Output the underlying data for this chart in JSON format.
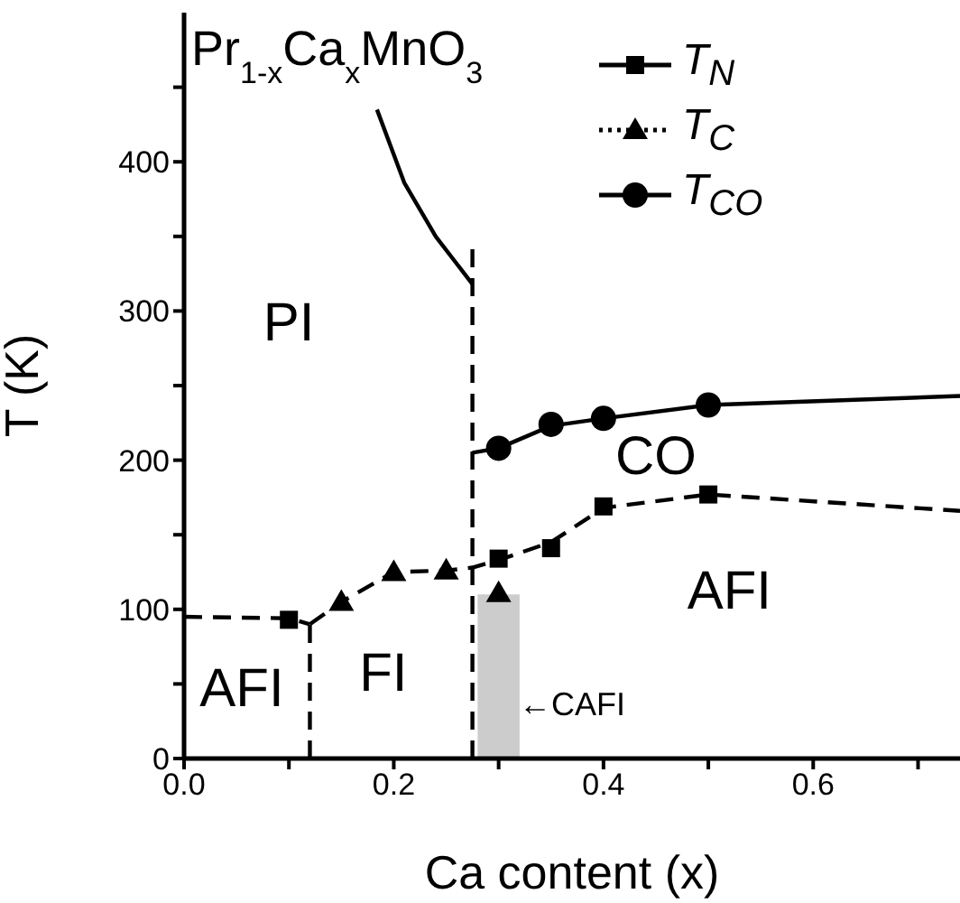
{
  "chart_data": {
    "type": "line",
    "title": "Pr$_{1-x}$Ca$_{x}$MnO$_{3}$",
    "xlabel": "Ca content (x)",
    "ylabel": "T (K)",
    "xlim": [
      0,
      0.74
    ],
    "xticks": [
      {
        "value": 0,
        "label": "0.0"
      },
      {
        "value": 0.1,
        "label": null
      },
      {
        "value": 0.2,
        "label": "0.2"
      },
      {
        "value": 0.3,
        "label": null
      },
      {
        "value": 0.4,
        "label": "0.4"
      },
      {
        "value": 0.5,
        "label": null
      },
      {
        "value": 0.6,
        "label": "0.6"
      },
      {
        "value": 0.7,
        "label": null
      }
    ],
    "ylim": [
      0,
      500
    ],
    "yticks": [
      0,
      {
        "value": 50,
        "label": null
      },
      100,
      {
        "value": 150,
        "label": null
      },
      200,
      {
        "value": 250,
        "label": null
      },
      300,
      {
        "value": 350,
        "label": null
      },
      400,
      {
        "value": 450,
        "label": null
      }
    ],
    "legend": "top right",
    "series": [
      {
        "type": "area",
        "color": "#cccccc",
        "x": [
          0.28,
          0.32
        ],
        "values": [
          110,
          110
        ]
      },
      {
        "color": "#000000",
        "line_style": "dashed",
        "x": [
          0,
          0.1,
          0.12
        ],
        "values": [
          95,
          94,
          90
        ]
      },
      {
        "color": "#000000",
        "line_style": "dashed",
        "x": [
          0.12,
          0.15,
          0.2,
          0.25,
          0.275,
          0.3,
          0.35,
          0.4,
          0.5,
          0.74
        ],
        "values": [
          90,
          105,
          125,
          126,
          128,
          133,
          145,
          168,
          177,
          166
        ]
      },
      {
        "color": "#000000",
        "line_style": "dashed",
        "x": [
          0.12,
          0.12
        ],
        "values": [
          0,
          90
        ]
      },
      {
        "color": "#000000",
        "line_style": "dashed",
        "x": [
          0.275,
          0.275
        ],
        "values": [
          0,
          345
        ]
      },
      {
        "color": "#000000",
        "line_style": "solid",
        "x": [
          0.184,
          0.21,
          0.24,
          0.275
        ],
        "values": [
          435,
          386,
          350,
          318
        ]
      },
      {
        "color": "#000000",
        "line_style": "solid",
        "x": [
          0.275,
          0.3,
          0.35,
          0.4,
          0.5,
          0.74
        ],
        "values": [
          205,
          208,
          223,
          228,
          237,
          243
        ]
      },
      {
        "type": "scatter",
        "name": "T$_{N}$",
        "color": "#000000",
        "marker": "square",
        "line_style": "solid",
        "x": [
          0.1,
          0.3,
          0.35,
          0.4,
          0.5
        ],
        "values": [
          93,
          134,
          141,
          169,
          177
        ]
      },
      {
        "type": "scatter",
        "name": "T$_{C}$",
        "color": "#000000",
        "marker": "triangle",
        "line_style": "dotted",
        "x": [
          0.15,
          0.2,
          0.25,
          0.3
        ],
        "values": [
          105,
          125,
          126,
          111
        ]
      },
      {
        "type": "scatter",
        "name": "T$_{CO}$",
        "color": "#000000",
        "marker": "circle",
        "line_style": "solid",
        "x": [
          0.3,
          0.35,
          0.4,
          0.5
        ],
        "values": [
          208,
          224,
          228,
          237
        ]
      }
    ],
    "annotations": [
      "PI",
      "CO",
      "AFI",
      "FI",
      "AFI",
      "←CAFI"
    ]
  }
}
